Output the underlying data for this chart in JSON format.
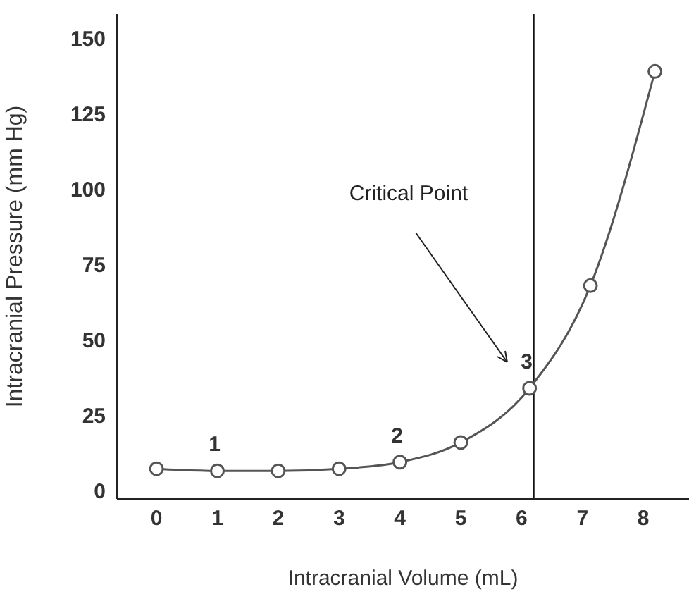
{
  "chart_data": {
    "type": "line",
    "xlabel": "Intracranial Volume (mL)",
    "ylabel": "Intracranial Pressure (mm Hg)",
    "x": [
      0,
      1,
      2,
      3,
      4,
      5,
      6.13,
      7.13,
      8.19
    ],
    "series": [
      {
        "color": "#555555",
        "values": [
          7.3,
          6.6,
          6.6,
          7.3,
          9.5,
          16,
          34,
          68,
          139
        ]
      }
    ],
    "xlim": [
      -0.65,
      8.75
    ],
    "xticks": [
      0,
      1,
      2,
      3,
      4,
      5,
      6,
      7,
      8
    ],
    "ylim": [
      -2.7,
      158
    ],
    "yticks": [
      0,
      25,
      50,
      75,
      100,
      125,
      150
    ],
    "ref_lines": [
      {
        "axis": "x",
        "value": 6.2,
        "color": "#111111"
      }
    ],
    "annotations": [
      {
        "text": "1",
        "x": 1,
        "y": 6.6
      },
      {
        "text": "2",
        "x": 4,
        "y": 9.5
      },
      {
        "text": "3",
        "x": 6.13,
        "y": 34
      },
      "Critical Point"
    ],
    "marker": "circle",
    "line_style": "solid",
    "grid": false,
    "legend": false
  }
}
